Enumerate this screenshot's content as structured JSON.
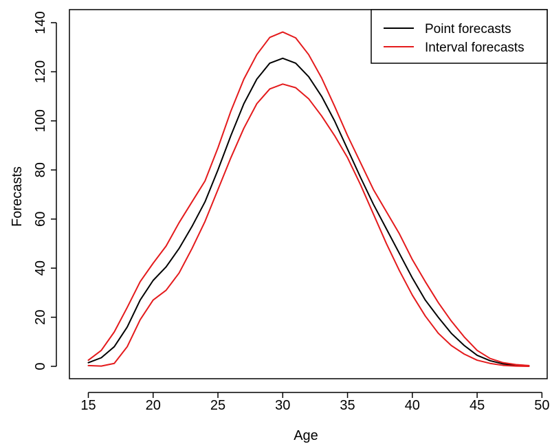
{
  "chart_data": {
    "type": "line",
    "title": "",
    "xlabel": "Age",
    "ylabel": "Forecasts",
    "xlim": [
      15,
      49
    ],
    "ylim": [
      0,
      140
    ],
    "x_ticks": [
      15,
      20,
      25,
      30,
      35,
      40,
      45,
      50
    ],
    "y_ticks": [
      0,
      20,
      40,
      60,
      80,
      100,
      120,
      140
    ],
    "grid": false,
    "legend_position": "top-right",
    "x": [
      15,
      16,
      17,
      18,
      19,
      20,
      21,
      22,
      23,
      24,
      25,
      26,
      27,
      28,
      29,
      30,
      31,
      32,
      33,
      34,
      35,
      36,
      37,
      38,
      39,
      40,
      41,
      42,
      43,
      44,
      45,
      46,
      47,
      48,
      49
    ],
    "series": [
      {
        "name": "Point forecasts",
        "color": "#000000",
        "legend": true,
        "values": [
          1.5,
          3.5,
          8,
          16,
          27,
          35,
          40.5,
          48,
          57,
          67,
          80,
          94,
          107,
          117,
          123.5,
          125.5,
          123.5,
          118,
          110,
          100,
          88.5,
          77,
          66,
          56,
          46,
          36,
          27,
          20,
          13.5,
          8.5,
          4.5,
          2.3,
          1,
          0.4,
          0.1
        ]
      },
      {
        "name": "Interval forecasts",
        "color": "#e41a1c",
        "legend": true,
        "values": [
          2.5,
          6.5,
          14,
          24,
          34.5,
          42,
          49,
          58.5,
          67,
          75.5,
          89,
          104,
          117,
          127,
          134,
          136.2,
          133.8,
          127,
          117.5,
          106,
          94,
          83,
          72,
          63,
          54,
          43.5,
          34.5,
          26,
          18.5,
          12,
          6.5,
          3.2,
          1.5,
          0.7,
          0.3
        ]
      },
      {
        "name": "Interval forecasts",
        "color": "#e41a1c",
        "legend": false,
        "values": [
          0.3,
          0.1,
          1.2,
          8,
          19,
          27,
          31,
          38,
          48,
          59,
          72,
          85,
          97,
          107,
          113,
          115,
          113.5,
          109,
          102,
          94,
          85,
          74,
          62,
          50,
          39,
          29,
          20.5,
          13.5,
          8.5,
          5,
          2.5,
          1.2,
          0.4,
          0.1,
          0
        ]
      }
    ]
  }
}
